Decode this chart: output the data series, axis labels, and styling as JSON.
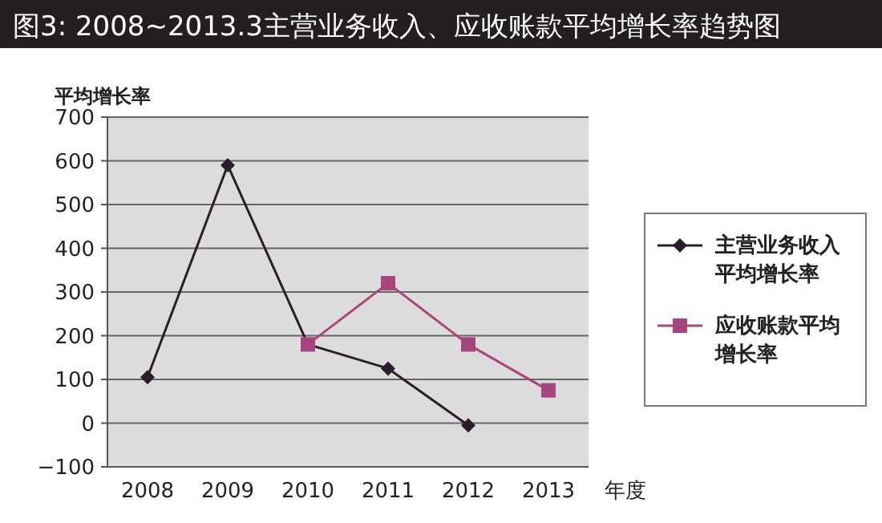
{
  "chart_data": {
    "type": "line",
    "title": "图3: 2008~2013.3主营业务收入、应收账款平均增长率趋势图",
    "ylabel": "平均增长率",
    "xlabel": "年度",
    "categories": [
      "2008",
      "2009",
      "2010",
      "2011",
      "2012",
      "2013"
    ],
    "series": [
      {
        "name": "主营业务收入平均增长率",
        "color": "#2b1d2b",
        "marker": "diamond",
        "values": [
          105,
          590,
          180,
          125,
          -5,
          null
        ]
      },
      {
        "name": "应收账款平均增长率",
        "color": "#a8457f",
        "marker": "square",
        "values": [
          null,
          null,
          180,
          320,
          180,
          75
        ]
      }
    ],
    "ylim": [
      -100,
      700
    ],
    "yticks": [
      -100,
      0,
      100,
      200,
      300,
      400,
      500,
      600,
      700
    ],
    "grid": "y",
    "legend": "right",
    "line_style": "solid"
  }
}
